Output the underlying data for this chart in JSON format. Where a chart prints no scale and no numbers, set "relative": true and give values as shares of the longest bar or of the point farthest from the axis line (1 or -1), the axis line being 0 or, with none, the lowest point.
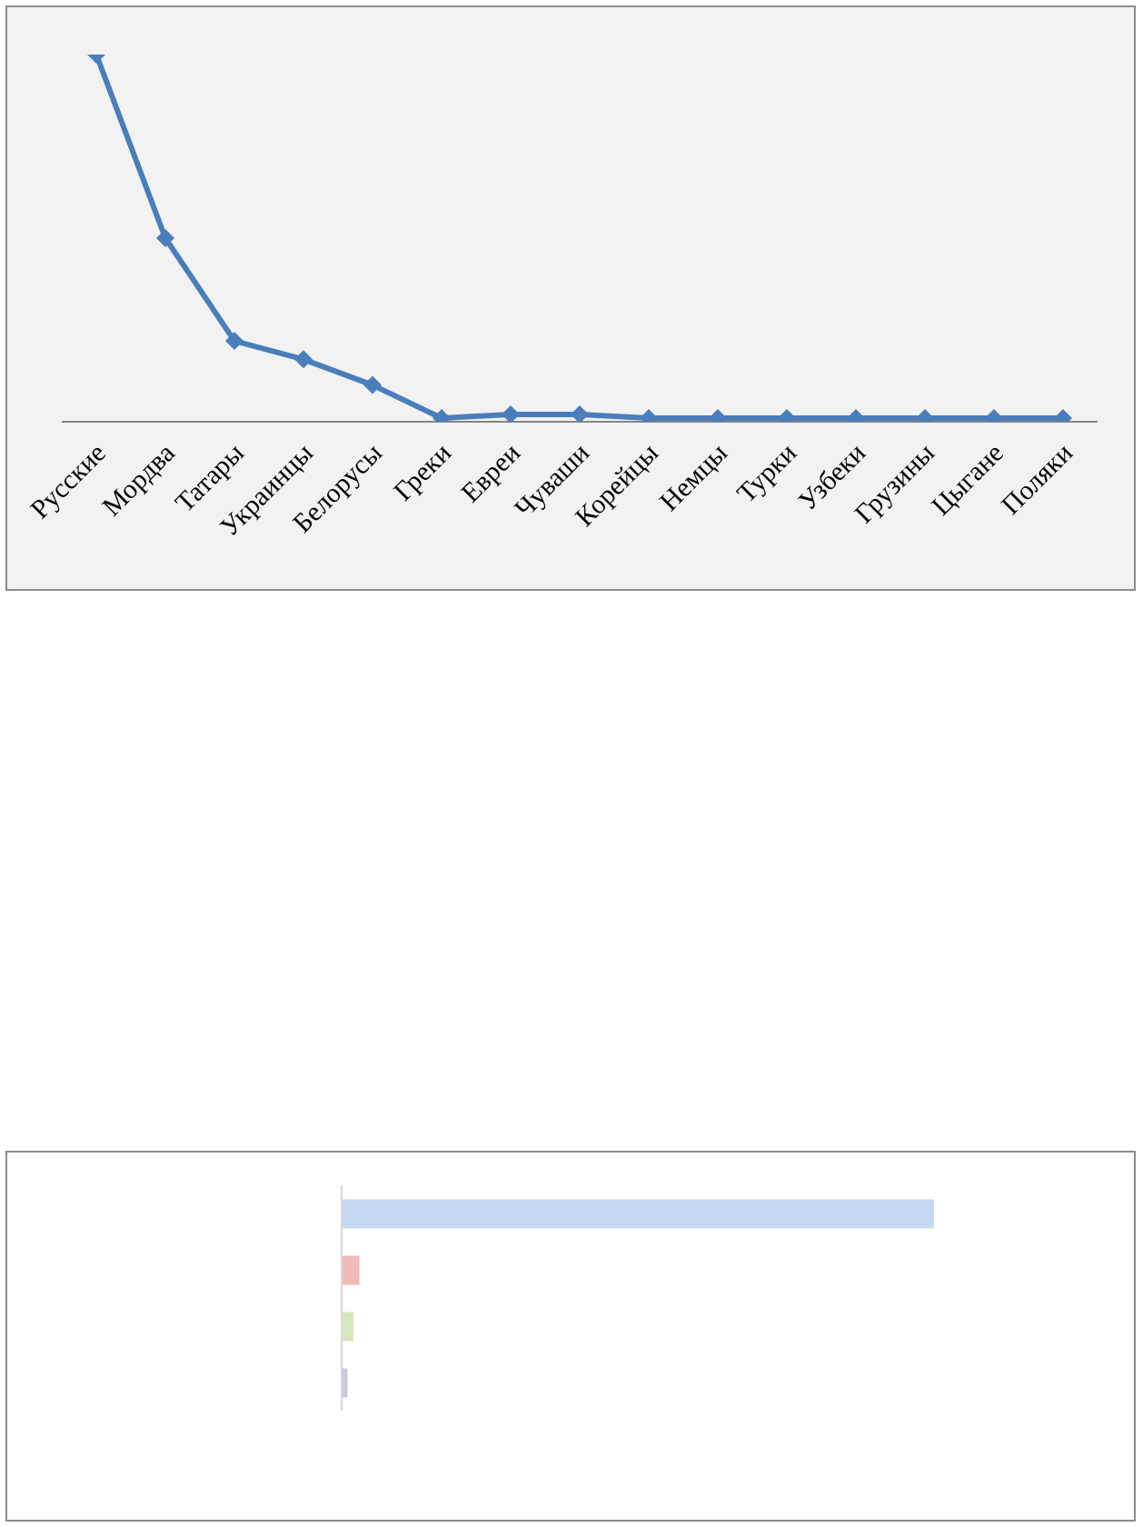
{
  "chart_data": [
    {
      "type": "line",
      "relative": true,
      "categories": [
        "Русские",
        "Мордва",
        "Татары",
        "Украинцы",
        "Белорусы",
        "Греки",
        "Евреи",
        "Чуваши",
        "Корейцы",
        "Немцы",
        "Турки",
        "Узбеки",
        "Грузины",
        "Цыгане",
        "Поляки"
      ],
      "values": [
        1,
        0.5,
        0.22,
        0.17,
        0.1,
        0.01,
        0.02,
        0.02,
        0.01,
        0.01,
        0.01,
        0.01,
        0.01,
        0.01,
        0.01
      ],
      "color": "#4a7ebb",
      "marker": "diamond",
      "line_style": "solid"
    },
    {
      "type": "bar",
      "orientation": "horizontal",
      "relative": true,
      "categories": [
        null,
        null,
        null,
        null
      ],
      "values": [
        1,
        0.03,
        0.02,
        0.01
      ],
      "colors": [
        "#c6d9f1",
        "#f2b9b9",
        "#d9e5be",
        "#ccc8dc"
      ]
    }
  ]
}
